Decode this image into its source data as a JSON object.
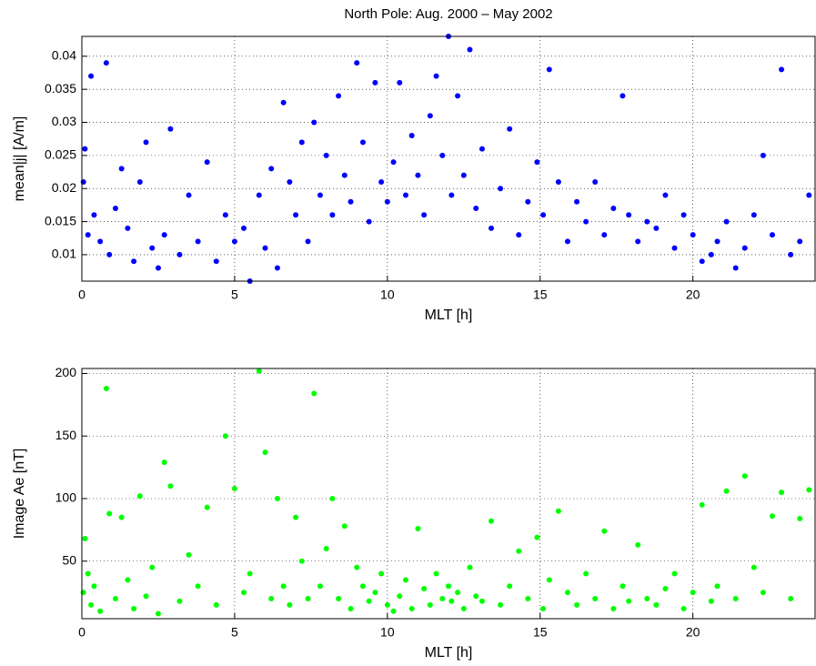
{
  "chart_data": [
    {
      "type": "scatter",
      "title": "North Pole: Aug. 2000 – May 2002",
      "xlabel": "MLT [h]",
      "ylabel": "mean|j| [A/m]",
      "color": "#0000ff",
      "grid": true,
      "xlim": [
        0,
        24
      ],
      "ylim": [
        0.006,
        0.043
      ],
      "xticks": [
        0,
        5,
        10,
        15,
        20
      ],
      "yticks": [
        0.01,
        0.015,
        0.02,
        0.025,
        0.03,
        0.035,
        0.04
      ],
      "x": [
        0.05,
        0.1,
        0.2,
        0.3,
        0.4,
        0.6,
        0.8,
        0.9,
        1.1,
        1.3,
        1.5,
        1.7,
        1.9,
        2.1,
        2.3,
        2.5,
        2.7,
        2.9,
        3.2,
        3.5,
        3.8,
        4.1,
        4.4,
        4.7,
        5.0,
        5.3,
        5.5,
        5.8,
        6.0,
        6.2,
        6.4,
        6.6,
        6.8,
        7.0,
        7.2,
        7.4,
        7.6,
        7.8,
        8.0,
        8.2,
        8.4,
        8.6,
        8.8,
        9.0,
        9.2,
        9.4,
        9.6,
        9.8,
        10.0,
        10.2,
        10.4,
        10.6,
        10.8,
        11.0,
        11.2,
        11.4,
        11.6,
        11.8,
        12.0,
        12.1,
        12.3,
        12.5,
        12.7,
        12.9,
        13.1,
        13.4,
        13.7,
        14.0,
        14.3,
        14.6,
        14.9,
        15.1,
        15.3,
        15.6,
        15.9,
        16.2,
        16.5,
        16.8,
        17.1,
        17.4,
        17.7,
        17.9,
        18.2,
        18.5,
        18.8,
        19.1,
        19.4,
        19.7,
        20.0,
        20.3,
        20.6,
        20.8,
        21.1,
        21.4,
        21.7,
        22.0,
        22.3,
        22.6,
        22.9,
        23.2,
        23.5,
        23.8
      ],
      "values": [
        0.021,
        0.026,
        0.013,
        0.037,
        0.016,
        0.012,
        0.039,
        0.01,
        0.017,
        0.023,
        0.014,
        0.009,
        0.021,
        0.027,
        0.011,
        0.008,
        0.013,
        0.029,
        0.01,
        0.019,
        0.012,
        0.024,
        0.009,
        0.016,
        0.012,
        0.014,
        0.006,
        0.019,
        0.011,
        0.023,
        0.008,
        0.033,
        0.021,
        0.016,
        0.027,
        0.012,
        0.03,
        0.019,
        0.025,
        0.016,
        0.034,
        0.022,
        0.018,
        0.039,
        0.027,
        0.015,
        0.036,
        0.021,
        0.018,
        0.024,
        0.036,
        0.019,
        0.028,
        0.022,
        0.016,
        0.031,
        0.037,
        0.025,
        0.043,
        0.019,
        0.034,
        0.022,
        0.041,
        0.017,
        0.026,
        0.014,
        0.02,
        0.029,
        0.013,
        0.018,
        0.024,
        0.016,
        0.038,
        0.021,
        0.012,
        0.018,
        0.015,
        0.021,
        0.013,
        0.017,
        0.034,
        0.016,
        0.012,
        0.015,
        0.014,
        0.019,
        0.011,
        0.016,
        0.013,
        0.009,
        0.01,
        0.012,
        0.015,
        0.008,
        0.011,
        0.016,
        0.025,
        0.013,
        0.038,
        0.01,
        0.012,
        0.019
      ]
    },
    {
      "type": "scatter",
      "xlabel": "MLT [h]",
      "ylabel": "Image Ae [nT]",
      "color": "#00ff00",
      "grid": true,
      "xlim": [
        0,
        24
      ],
      "ylim": [
        4,
        204
      ],
      "xticks": [
        0,
        5,
        10,
        15,
        20
      ],
      "yticks": [
        50,
        100,
        150,
        200
      ],
      "x": [
        0.05,
        0.1,
        0.2,
        0.3,
        0.4,
        0.6,
        0.8,
        0.9,
        1.1,
        1.3,
        1.5,
        1.7,
        1.9,
        2.1,
        2.3,
        2.5,
        2.7,
        2.9,
        3.2,
        3.5,
        3.8,
        4.1,
        4.4,
        4.7,
        5.0,
        5.3,
        5.5,
        5.8,
        6.0,
        6.2,
        6.4,
        6.6,
        6.8,
        7.0,
        7.2,
        7.4,
        7.6,
        7.8,
        8.0,
        8.2,
        8.4,
        8.6,
        8.8,
        9.0,
        9.2,
        9.4,
        9.6,
        9.8,
        10.0,
        10.2,
        10.4,
        10.6,
        10.8,
        11.0,
        11.2,
        11.4,
        11.6,
        11.8,
        12.0,
        12.1,
        12.3,
        12.5,
        12.7,
        12.9,
        13.1,
        13.4,
        13.7,
        14.0,
        14.3,
        14.6,
        14.9,
        15.1,
        15.3,
        15.6,
        15.9,
        16.2,
        16.5,
        16.8,
        17.1,
        17.4,
        17.7,
        17.9,
        18.2,
        18.5,
        18.8,
        19.1,
        19.4,
        19.7,
        20.0,
        20.3,
        20.6,
        20.8,
        21.1,
        21.4,
        21.7,
        22.0,
        22.3,
        22.6,
        22.9,
        23.2,
        23.5,
        23.8
      ],
      "values": [
        25,
        68,
        40,
        15,
        30,
        10,
        188,
        88,
        20,
        85,
        35,
        12,
        102,
        22,
        45,
        8,
        129,
        110,
        18,
        55,
        30,
        93,
        15,
        150,
        108,
        25,
        40,
        202,
        137,
        20,
        100,
        30,
        15,
        85,
        50,
        20,
        184,
        30,
        60,
        100,
        20,
        78,
        12,
        45,
        30,
        18,
        25,
        40,
        15,
        10,
        22,
        35,
        12,
        76,
        28,
        15,
        40,
        20,
        30,
        18,
        25,
        12,
        45,
        22,
        18,
        82,
        15,
        30,
        58,
        20,
        69,
        12,
        35,
        90,
        25,
        15,
        40,
        20,
        74,
        12,
        30,
        18,
        63,
        20,
        15,
        28,
        40,
        12,
        25,
        95,
        18,
        30,
        106,
        20,
        118,
        45,
        25,
        86,
        105,
        20,
        84,
        107
      ]
    }
  ]
}
